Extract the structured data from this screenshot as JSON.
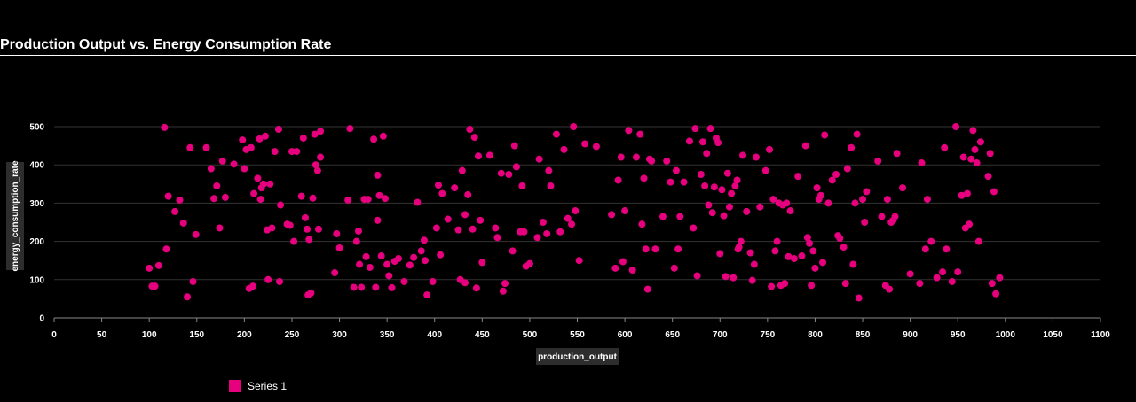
{
  "chart_data": {
    "type": "scatter",
    "title": "Production Output vs. Energy Consumption Rate",
    "xlabel": "production_output",
    "ylabel": "energy_consumption_rate",
    "xlim": [
      0,
      1100
    ],
    "ylim": [
      0,
      500
    ],
    "xticks": [
      0,
      50,
      100,
      150,
      200,
      250,
      300,
      350,
      400,
      450,
      500,
      550,
      600,
      650,
      700,
      750,
      800,
      850,
      900,
      950,
      1000,
      1050,
      1100
    ],
    "yticks": [
      0,
      100,
      200,
      300,
      400,
      500
    ],
    "grid": "horizontal",
    "legend_position": "bottom-left",
    "colors": {
      "background": "#000000",
      "point": "#e6007e",
      "grid": "#333333",
      "axis": "#888888"
    },
    "series": [
      {
        "name": "Series 1",
        "points": [
          [
            100,
            130
          ],
          [
            103,
            83
          ],
          [
            106,
            83
          ],
          [
            110,
            137
          ],
          [
            116,
            498
          ],
          [
            118,
            180
          ],
          [
            120,
            318
          ],
          [
            127,
            278
          ],
          [
            132,
            308
          ],
          [
            136,
            248
          ],
          [
            140,
            55
          ],
          [
            143,
            445
          ],
          [
            146,
            95
          ],
          [
            149,
            218
          ],
          [
            160,
            445
          ],
          [
            165,
            390
          ],
          [
            168,
            312
          ],
          [
            171,
            345
          ],
          [
            174,
            235
          ],
          [
            177,
            410
          ],
          [
            180,
            315
          ],
          [
            189,
            402
          ],
          [
            198,
            465
          ],
          [
            200,
            390
          ],
          [
            202,
            440
          ],
          [
            205,
            77
          ],
          [
            207,
            445
          ],
          [
            209,
            83
          ],
          [
            210,
            325
          ],
          [
            214,
            365
          ],
          [
            216,
            468
          ],
          [
            217,
            310
          ],
          [
            218,
            340
          ],
          [
            220,
            350
          ],
          [
            222,
            475
          ],
          [
            224,
            230
          ],
          [
            225,
            100
          ],
          [
            227,
            350
          ],
          [
            229,
            235
          ],
          [
            232,
            435
          ],
          [
            236,
            493
          ],
          [
            237,
            95
          ],
          [
            238,
            295
          ],
          [
            245,
            245
          ],
          [
            248,
            242
          ],
          [
            250,
            435
          ],
          [
            252,
            200
          ],
          [
            255,
            435
          ],
          [
            260,
            318
          ],
          [
            262,
            470
          ],
          [
            264,
            262
          ],
          [
            266,
            232
          ],
          [
            267,
            60
          ],
          [
            268,
            205
          ],
          [
            270,
            65
          ],
          [
            272,
            313
          ],
          [
            274,
            480
          ],
          [
            275,
            400
          ],
          [
            277,
            385
          ],
          [
            278,
            232
          ],
          [
            280,
            420
          ],
          [
            280,
            488
          ],
          [
            295,
            118
          ],
          [
            297,
            220
          ],
          [
            300,
            183
          ],
          [
            309,
            308
          ],
          [
            311,
            495
          ],
          [
            315,
            80
          ],
          [
            318,
            200
          ],
          [
            320,
            227
          ],
          [
            321,
            140
          ],
          [
            323,
            80
          ],
          [
            326,
            310
          ],
          [
            328,
            160
          ],
          [
            330,
            310
          ],
          [
            332,
            132
          ],
          [
            336,
            467
          ],
          [
            338,
            80
          ],
          [
            340,
            255
          ],
          [
            340,
            373
          ],
          [
            342,
            320
          ],
          [
            344,
            162
          ],
          [
            346,
            475
          ],
          [
            348,
            312
          ],
          [
            350,
            140
          ],
          [
            352,
            110
          ],
          [
            355,
            79
          ],
          [
            358,
            148
          ],
          [
            362,
            155
          ],
          [
            368,
            95
          ],
          [
            374,
            138
          ],
          [
            378,
            158
          ],
          [
            382,
            302
          ],
          [
            386,
            175
          ],
          [
            389,
            203
          ],
          [
            390,
            150
          ],
          [
            392,
            60
          ],
          [
            398,
            95
          ],
          [
            402,
            235
          ],
          [
            404,
            347
          ],
          [
            406,
            165
          ],
          [
            408,
            325
          ],
          [
            414,
            258
          ],
          [
            421,
            340
          ],
          [
            425,
            230
          ],
          [
            427,
            100
          ],
          [
            429,
            385
          ],
          [
            432,
            92
          ],
          [
            432,
            270
          ],
          [
            435,
            322
          ],
          [
            437,
            493
          ],
          [
            440,
            232
          ],
          [
            442,
            472
          ],
          [
            444,
            78
          ],
          [
            446,
            423
          ],
          [
            448,
            255
          ],
          [
            450,
            145
          ],
          [
            458,
            425
          ],
          [
            464,
            235
          ],
          [
            466,
            210
          ],
          [
            470,
            378
          ],
          [
            472,
            70
          ],
          [
            474,
            90
          ],
          [
            478,
            375
          ],
          [
            482,
            175
          ],
          [
            484,
            450
          ],
          [
            486,
            395
          ],
          [
            490,
            225
          ],
          [
            492,
            345
          ],
          [
            494,
            225
          ],
          [
            496,
            135
          ],
          [
            500,
            142
          ],
          [
            508,
            210
          ],
          [
            510,
            415
          ],
          [
            514,
            250
          ],
          [
            518,
            220
          ],
          [
            520,
            385
          ],
          [
            522,
            345
          ],
          [
            528,
            480
          ],
          [
            532,
            225
          ],
          [
            536,
            440
          ],
          [
            540,
            260
          ],
          [
            544,
            245
          ],
          [
            546,
            500
          ],
          [
            548,
            280
          ],
          [
            552,
            150
          ],
          [
            558,
            455
          ],
          [
            570,
            448
          ],
          [
            586,
            270
          ],
          [
            590,
            130
          ],
          [
            593,
            360
          ],
          [
            596,
            420
          ],
          [
            598,
            147
          ],
          [
            600,
            280
          ],
          [
            604,
            490
          ],
          [
            608,
            125
          ],
          [
            612,
            420
          ],
          [
            616,
            480
          ],
          [
            618,
            245
          ],
          [
            620,
            365
          ],
          [
            622,
            180
          ],
          [
            624,
            75
          ],
          [
            626,
            415
          ],
          [
            628,
            410
          ],
          [
            632,
            180
          ],
          [
            640,
            265
          ],
          [
            644,
            410
          ],
          [
            648,
            355
          ],
          [
            652,
            130
          ],
          [
            654,
            385
          ],
          [
            656,
            180
          ],
          [
            658,
            265
          ],
          [
            662,
            355
          ],
          [
            668,
            462
          ],
          [
            672,
            235
          ],
          [
            674,
            495
          ],
          [
            676,
            110
          ],
          [
            680,
            375
          ],
          [
            682,
            460
          ],
          [
            684,
            345
          ],
          [
            686,
            430
          ],
          [
            688,
            295
          ],
          [
            690,
            495
          ],
          [
            692,
            275
          ],
          [
            694,
            342
          ],
          [
            696,
            470
          ],
          [
            698,
            458
          ],
          [
            700,
            168
          ],
          [
            702,
            335
          ],
          [
            704,
            267
          ],
          [
            706,
            108
          ],
          [
            708,
            378
          ],
          [
            710,
            290
          ],
          [
            712,
            325
          ],
          [
            714,
            105
          ],
          [
            716,
            345
          ],
          [
            718,
            360
          ],
          [
            719,
            180
          ],
          [
            720,
            185
          ],
          [
            722,
            200
          ],
          [
            724,
            425
          ],
          [
            728,
            278
          ],
          [
            732,
            170
          ],
          [
            734,
            98
          ],
          [
            736,
            140
          ],
          [
            738,
            420
          ],
          [
            742,
            290
          ],
          [
            748,
            385
          ],
          [
            752,
            440
          ],
          [
            754,
            82
          ],
          [
            756,
            310
          ],
          [
            758,
            175
          ],
          [
            760,
            200
          ],
          [
            762,
            300
          ],
          [
            764,
            85
          ],
          [
            766,
            295
          ],
          [
            768,
            90
          ],
          [
            770,
            300
          ],
          [
            772,
            160
          ],
          [
            774,
            280
          ],
          [
            778,
            155
          ],
          [
            782,
            370
          ],
          [
            786,
            162
          ],
          [
            790,
            450
          ],
          [
            792,
            210
          ],
          [
            794,
            195
          ],
          [
            796,
            85
          ],
          [
            798,
            175
          ],
          [
            800,
            130
          ],
          [
            802,
            340
          ],
          [
            804,
            310
          ],
          [
            806,
            320
          ],
          [
            808,
            145
          ],
          [
            810,
            478
          ],
          [
            814,
            300
          ],
          [
            818,
            360
          ],
          [
            822,
            375
          ],
          [
            824,
            215
          ],
          [
            826,
            208
          ],
          [
            830,
            185
          ],
          [
            832,
            90
          ],
          [
            834,
            390
          ],
          [
            838,
            445
          ],
          [
            840,
            140
          ],
          [
            842,
            300
          ],
          [
            844,
            480
          ],
          [
            846,
            52
          ],
          [
            850,
            310
          ],
          [
            852,
            250
          ],
          [
            854,
            330
          ],
          [
            866,
            410
          ],
          [
            870,
            265
          ],
          [
            874,
            85
          ],
          [
            876,
            310
          ],
          [
            878,
            75
          ],
          [
            880,
            250
          ],
          [
            882,
            255
          ],
          [
            884,
            265
          ],
          [
            886,
            430
          ],
          [
            892,
            340
          ],
          [
            900,
            115
          ],
          [
            910,
            90
          ],
          [
            912,
            405
          ],
          [
            916,
            180
          ],
          [
            918,
            310
          ],
          [
            922,
            200
          ],
          [
            928,
            105
          ],
          [
            934,
            120
          ],
          [
            936,
            445
          ],
          [
            938,
            180
          ],
          [
            944,
            95
          ],
          [
            948,
            500
          ],
          [
            950,
            120
          ],
          [
            954,
            320
          ],
          [
            956,
            420
          ],
          [
            958,
            235
          ],
          [
            960,
            325
          ],
          [
            962,
            245
          ],
          [
            964,
            415
          ],
          [
            966,
            490
          ],
          [
            968,
            440
          ],
          [
            970,
            405
          ],
          [
            972,
            200
          ],
          [
            974,
            460
          ],
          [
            982,
            370
          ],
          [
            984,
            430
          ],
          [
            986,
            90
          ],
          [
            988,
            330
          ],
          [
            990,
            63
          ],
          [
            994,
            105
          ]
        ]
      }
    ]
  }
}
